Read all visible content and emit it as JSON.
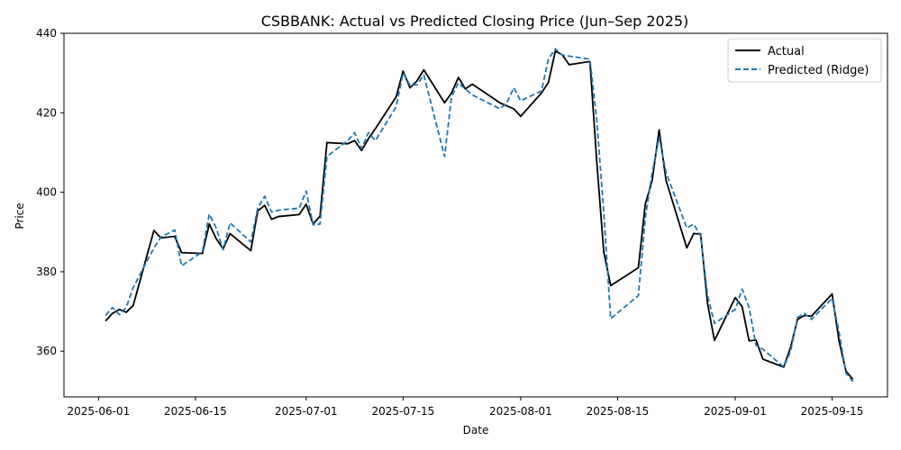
{
  "chart_data": {
    "type": "line",
    "title": "CSBBANK: Actual vs Predicted Closing Price (Jun–Sep 2025)",
    "xlabel": "Date",
    "ylabel": "Price",
    "xlim": [
      "2025-05-27",
      "2025-09-23"
    ],
    "ylim": [
      348.5,
      440
    ],
    "x_tick_labels": [
      "2025-06-01",
      "2025-06-15",
      "2025-07-01",
      "2025-07-15",
      "2025-08-01",
      "2025-08-15",
      "2025-09-01",
      "2025-09-15"
    ],
    "y_tick_labels": [
      "360",
      "380",
      "400",
      "420",
      "440"
    ],
    "legend_position": "top-right",
    "grid": false,
    "series": [
      {
        "name": "Actual",
        "color": "#000000",
        "style": "solid",
        "points": [
          [
            "2025-06-02",
            367.6
          ],
          [
            "2025-06-03",
            369.5
          ],
          [
            "2025-06-04",
            370.5
          ],
          [
            "2025-06-05",
            369.8
          ],
          [
            "2025-06-06",
            371.5
          ],
          [
            "2025-06-09",
            390.4
          ],
          [
            "2025-06-10",
            388.5
          ],
          [
            "2025-06-12",
            388.9
          ],
          [
            "2025-06-13",
            384.8
          ],
          [
            "2025-06-16",
            384.6
          ],
          [
            "2025-06-17",
            392.0
          ],
          [
            "2025-06-18",
            388.3
          ],
          [
            "2025-06-19",
            385.8
          ],
          [
            "2025-06-20",
            389.6
          ],
          [
            "2025-06-23",
            385.3
          ],
          [
            "2025-06-24",
            395.3
          ],
          [
            "2025-06-25",
            396.7
          ],
          [
            "2025-06-26",
            393.2
          ],
          [
            "2025-06-27",
            393.9
          ],
          [
            "2025-06-30",
            394.4
          ],
          [
            "2025-07-01",
            397.0
          ],
          [
            "2025-07-02",
            392.0
          ],
          [
            "2025-07-03",
            394.0
          ],
          [
            "2025-07-04",
            412.5
          ],
          [
            "2025-07-07",
            412.2
          ],
          [
            "2025-07-08",
            413.0
          ],
          [
            "2025-07-09",
            410.5
          ],
          [
            "2025-07-10",
            413.5
          ],
          [
            "2025-07-11",
            416.0
          ],
          [
            "2025-07-14",
            424.0
          ],
          [
            "2025-07-15",
            430.5
          ],
          [
            "2025-07-16",
            426.3
          ],
          [
            "2025-07-17",
            428.0
          ],
          [
            "2025-07-18",
            430.8
          ],
          [
            "2025-07-21",
            422.5
          ],
          [
            "2025-07-22",
            425.0
          ],
          [
            "2025-07-23",
            428.9
          ],
          [
            "2025-07-24",
            426.0
          ],
          [
            "2025-07-25",
            427.2
          ],
          [
            "2025-07-29",
            422.5
          ],
          [
            "2025-07-31",
            421.0
          ],
          [
            "2025-08-01",
            419.1
          ],
          [
            "2025-08-04",
            425.0
          ],
          [
            "2025-08-05",
            427.6
          ],
          [
            "2025-08-06",
            435.5
          ],
          [
            "2025-08-07",
            434.6
          ],
          [
            "2025-08-08",
            432.1
          ],
          [
            "2025-08-11",
            432.9
          ],
          [
            "2025-08-12",
            407.5
          ],
          [
            "2025-08-13",
            385.0
          ],
          [
            "2025-08-14",
            376.5
          ],
          [
            "2025-08-18",
            381.0
          ],
          [
            "2025-08-19",
            397.0
          ],
          [
            "2025-08-20",
            403.0
          ],
          [
            "2025-08-21",
            415.7
          ],
          [
            "2025-08-22",
            403.0
          ],
          [
            "2025-08-25",
            386.0
          ],
          [
            "2025-08-26",
            389.6
          ],
          [
            "2025-08-27",
            389.5
          ],
          [
            "2025-08-28",
            372.0
          ],
          [
            "2025-08-29",
            362.7
          ],
          [
            "2025-09-01",
            373.5
          ],
          [
            "2025-09-02",
            371.2
          ],
          [
            "2025-09-03",
            362.6
          ],
          [
            "2025-09-04",
            362.8
          ],
          [
            "2025-09-05",
            358.0
          ],
          [
            "2025-09-08",
            356.0
          ],
          [
            "2025-09-09",
            361.0
          ],
          [
            "2025-09-10",
            368.0
          ],
          [
            "2025-09-11",
            369.0
          ],
          [
            "2025-09-12",
            368.8
          ],
          [
            "2025-09-15",
            374.4
          ],
          [
            "2025-09-16",
            362.6
          ],
          [
            "2025-09-17",
            355.0
          ],
          [
            "2025-09-18",
            352.9
          ]
        ]
      },
      {
        "name": "Predicted (Ridge)",
        "color": "#1f77b4",
        "style": "dashed",
        "points": [
          [
            "2025-06-02",
            369.0
          ],
          [
            "2025-06-03",
            371.0
          ],
          [
            "2025-06-04",
            369.2
          ],
          [
            "2025-06-05",
            371.0
          ],
          [
            "2025-06-06",
            376.0
          ],
          [
            "2025-06-09",
            386.0
          ],
          [
            "2025-06-10",
            388.7
          ],
          [
            "2025-06-12",
            390.5
          ],
          [
            "2025-06-13",
            381.5
          ],
          [
            "2025-06-16",
            385.0
          ],
          [
            "2025-06-17",
            394.5
          ],
          [
            "2025-06-18",
            391.0
          ],
          [
            "2025-06-19",
            385.5
          ],
          [
            "2025-06-20",
            392.3
          ],
          [
            "2025-06-23",
            387.5
          ],
          [
            "2025-06-24",
            396.0
          ],
          [
            "2025-06-25",
            399.0
          ],
          [
            "2025-06-26",
            395.0
          ],
          [
            "2025-06-27",
            395.5
          ],
          [
            "2025-06-30",
            396.0
          ],
          [
            "2025-07-01",
            400.3
          ],
          [
            "2025-07-02",
            391.8
          ],
          [
            "2025-07-03",
            392.0
          ],
          [
            "2025-07-04",
            409.0
          ],
          [
            "2025-07-07",
            413.0
          ],
          [
            "2025-07-08",
            415.0
          ],
          [
            "2025-07-09",
            411.0
          ],
          [
            "2025-07-10",
            415.0
          ],
          [
            "2025-07-11",
            413.0
          ],
          [
            "2025-07-14",
            421.5
          ],
          [
            "2025-07-15",
            430.0
          ],
          [
            "2025-07-16",
            427.0
          ],
          [
            "2025-07-17",
            427.0
          ],
          [
            "2025-07-18",
            429.5
          ],
          [
            "2025-07-21",
            409.0
          ],
          [
            "2025-07-22",
            424.0
          ],
          [
            "2025-07-23",
            427.5
          ],
          [
            "2025-07-24",
            426.0
          ],
          [
            "2025-07-25",
            424.5
          ],
          [
            "2025-07-29",
            421.0
          ],
          [
            "2025-07-30",
            422.5
          ],
          [
            "2025-07-31",
            426.3
          ],
          [
            "2025-08-01",
            423.0
          ],
          [
            "2025-08-04",
            425.5
          ],
          [
            "2025-08-05",
            433.5
          ],
          [
            "2025-08-06",
            436.1
          ],
          [
            "2025-08-07",
            434.5
          ],
          [
            "2025-08-11",
            433.5
          ],
          [
            "2025-08-12",
            418.0
          ],
          [
            "2025-08-13",
            395.0
          ],
          [
            "2025-08-14",
            368.2
          ],
          [
            "2025-08-18",
            374.0
          ],
          [
            "2025-08-19",
            393.5
          ],
          [
            "2025-08-20",
            405.0
          ],
          [
            "2025-08-21",
            413.8
          ],
          [
            "2025-08-22",
            405.0
          ],
          [
            "2025-08-25",
            391.0
          ],
          [
            "2025-08-26",
            392.0
          ],
          [
            "2025-08-27",
            389.0
          ],
          [
            "2025-08-28",
            374.0
          ],
          [
            "2025-08-29",
            367.0
          ],
          [
            "2025-09-01",
            370.5
          ],
          [
            "2025-09-02",
            375.6
          ],
          [
            "2025-09-03",
            371.0
          ],
          [
            "2025-09-04",
            361.5
          ],
          [
            "2025-09-05",
            360.5
          ],
          [
            "2025-09-08",
            356.0
          ],
          [
            "2025-09-09",
            360.0
          ],
          [
            "2025-09-10",
            368.5
          ],
          [
            "2025-09-11",
            369.5
          ],
          [
            "2025-09-12",
            368.0
          ],
          [
            "2025-09-15",
            373.3
          ],
          [
            "2025-09-16",
            364.8
          ],
          [
            "2025-09-17",
            354.5
          ],
          [
            "2025-09-18",
            352.4
          ]
        ]
      }
    ]
  }
}
